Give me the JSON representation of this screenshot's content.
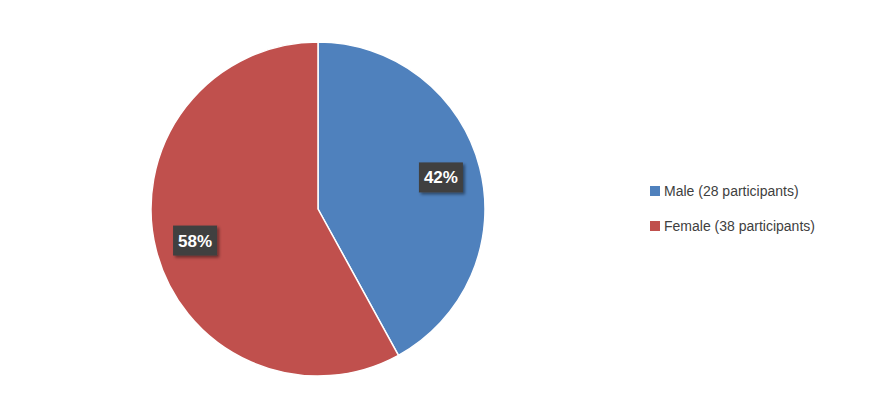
{
  "chart_data": {
    "type": "pie",
    "categories": [
      "Male (28 participants)",
      "Female (38 participants)"
    ],
    "values": [
      42,
      58
    ],
    "value_labels": [
      "42%",
      "58%"
    ],
    "colors": [
      "#4f81bd",
      "#c0504d"
    ],
    "data_labels": true,
    "legend": "right"
  }
}
